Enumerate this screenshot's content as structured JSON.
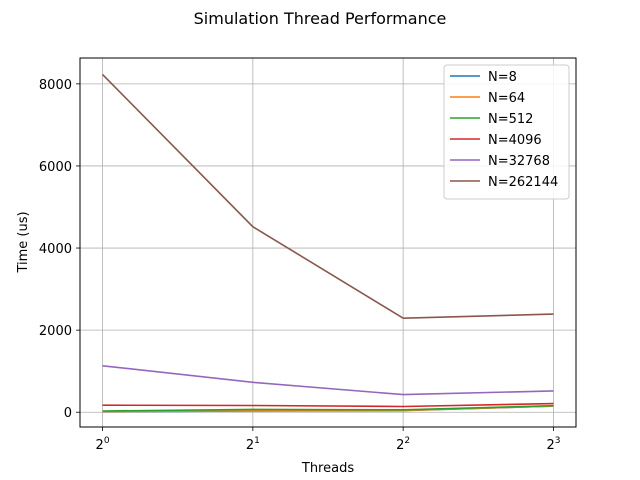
{
  "chart_data": {
    "type": "line",
    "title": "Simulation Thread Performance",
    "xlabel": "Threads",
    "ylabel": "Time (us)",
    "x_scale": "log2",
    "x": [
      1,
      2,
      4,
      8
    ],
    "x_tick_labels": [
      {
        "base": "2",
        "exp": "0"
      },
      {
        "base": "2",
        "exp": "1"
      },
      {
        "base": "2",
        "exp": "2"
      },
      {
        "base": "2",
        "exp": "3"
      }
    ],
    "y_ticks": [
      0,
      2000,
      4000,
      6000,
      8000
    ],
    "ylim": [
      -360,
      8630
    ],
    "grid": true,
    "legend_position": "top-right",
    "series": [
      {
        "name": "N=8",
        "color": "#1f77b4",
        "values": [
          10,
          30,
          40,
          150
        ]
      },
      {
        "name": "N=64",
        "color": "#ff7f0e",
        "values": [
          15,
          35,
          45,
          150
        ]
      },
      {
        "name": "N=512",
        "color": "#2ca02c",
        "values": [
          30,
          70,
          60,
          160
        ]
      },
      {
        "name": "N=4096",
        "color": "#d62728",
        "values": [
          170,
          165,
          140,
          210
        ]
      },
      {
        "name": "N=32768",
        "color": "#9467bd",
        "values": [
          1130,
          730,
          430,
          520
        ]
      },
      {
        "name": "N=262144",
        "color": "#8c564b",
        "values": [
          8230,
          4520,
          2290,
          2390
        ]
      }
    ]
  }
}
